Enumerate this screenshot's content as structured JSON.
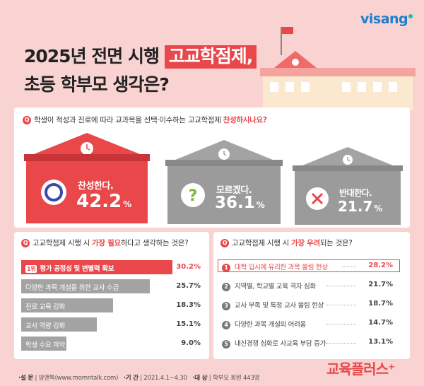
{
  "header": {
    "logo": "visang",
    "title_line1_prefix": "2025년 전면 시행",
    "title_line1_highlight": "고교학점제,",
    "title_line2": "초등 학부모 생각은?"
  },
  "q1": {
    "icon": "Q",
    "text_prefix": "학생이 적성과 진로에 따라 교과목을 선택·이수하는 고교학점제",
    "text_emphasis": "찬성하시나요?",
    "cards": [
      {
        "label": "찬성한다.",
        "value": 42.2,
        "value_text": "42.2",
        "unit": "%",
        "symbol": "circle-icon",
        "color": "#e9474a"
      },
      {
        "label": "모르겠다.",
        "value": 36.1,
        "value_text": "36.1",
        "unit": "%",
        "symbol": "question-icon",
        "color": "#9b9b9b"
      },
      {
        "label": "반대한다.",
        "value": 21.7,
        "value_text": "21.7",
        "unit": "%",
        "symbol": "x-icon",
        "color": "#9b9b9b"
      }
    ]
  },
  "chart_data": [
    {
      "type": "bar",
      "title": "고교학점제 시행 시 가장 필요하다고 생각하는 것은?",
      "categories": [
        "평가 공정성 및 변별력 확보",
        "다양한 과목 개설을 위한 교사 수급",
        "진로 교육 강화",
        "교사 역량 강화",
        "학생 수요 파악"
      ],
      "values": [
        30.2,
        25.7,
        18.3,
        15.1,
        9.0
      ],
      "value_labels": [
        "30.2%",
        "25.7%",
        "18.3%",
        "15.1%",
        "9.0%"
      ]
    },
    {
      "type": "table",
      "title": "고교학점제 시행 시 가장 우려되는 것은?",
      "categories": [
        "대학 입시에 유리한 과목 쏠림 현상",
        "지역별, 학교별 교육 격차 심화",
        "교사 부족 및 특정 교사 쏠림 현상",
        "다양한 과목 개설의 어려움",
        "내신경쟁 심화로 사교육 부담 증가"
      ],
      "values": [
        28.2,
        21.7,
        18.7,
        14.7,
        13.1
      ],
      "value_labels": [
        "28.2%",
        "21.7%",
        "18.7%",
        "14.7%",
        "13.1%"
      ]
    }
  ],
  "q2": {
    "icon": "Q",
    "text_prefix": "고교학점제 시행 시",
    "text_emphasis": "가장 필요",
    "text_suffix": "하다고 생각하는 것은?",
    "rank_badge": "1위"
  },
  "q3": {
    "icon": "Q",
    "text_prefix": "고교학점제 시행 시",
    "text_emphasis": "가장 우려",
    "text_suffix": "되는 것은?",
    "numbers": [
      "1",
      "2",
      "3",
      "4",
      "5"
    ]
  },
  "footer": {
    "survey_label": "·설 문",
    "survey_value": "맘앤톡(www.momntalk.com)",
    "period_label": "·기 간",
    "period_value": "2021.4.1~4.30",
    "target_label": "·대 상",
    "target_value": "학부모 회원 443명"
  },
  "brand": "교육플러스⁺",
  "colors": {
    "accent": "#e9474a",
    "gray": "#9b9b9b",
    "background": "#f9d3d2"
  }
}
